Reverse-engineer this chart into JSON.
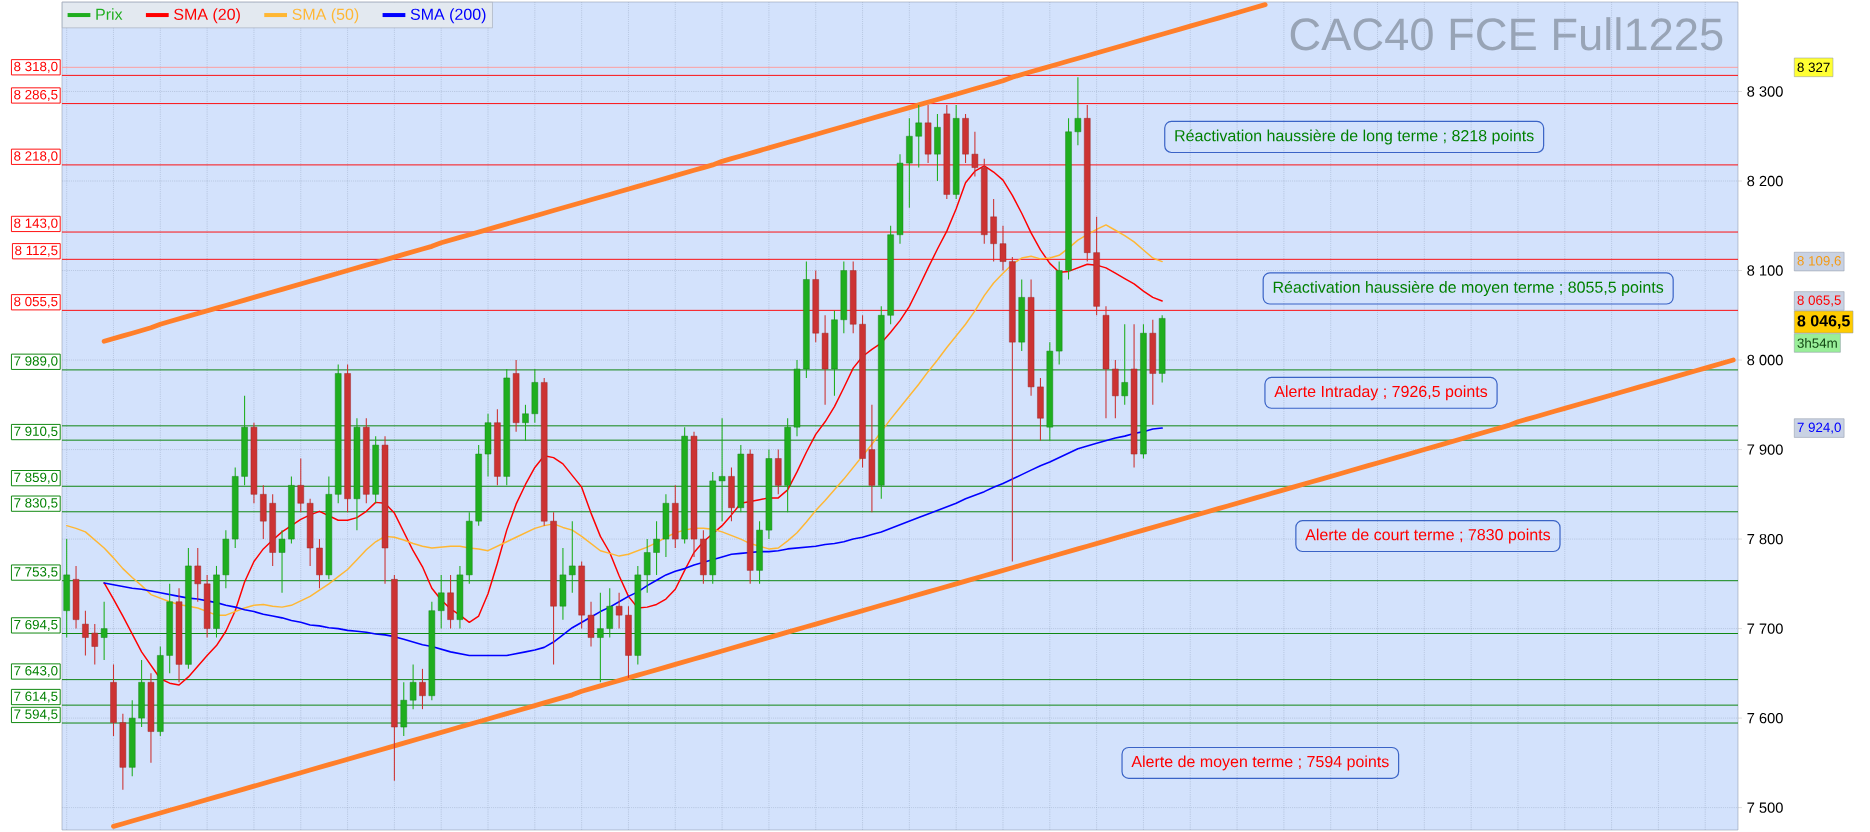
{
  "chart_data": {
    "type": "candlestick",
    "title": "CAC40 FCE Full1225",
    "categories": [
      null,
      null,
      null,
      null,
      null,
      null,
      null,
      null,
      null,
      null,
      null,
      null,
      null,
      null,
      null,
      null,
      null,
      null,
      null,
      null,
      null,
      null,
      null,
      null,
      null,
      null,
      null,
      null,
      null,
      null,
      null,
      null,
      null,
      null,
      null,
      null,
      null,
      null,
      null,
      null,
      null,
      null,
      null,
      null,
      null,
      null,
      null,
      null,
      null,
      null,
      null,
      null,
      null,
      null,
      null,
      null,
      null,
      null,
      null,
      null,
      null,
      null,
      null,
      null,
      null,
      null,
      null,
      null,
      null,
      null,
      null,
      null,
      null,
      null,
      null,
      null,
      null,
      null,
      null,
      null,
      null,
      null,
      null,
      null,
      null,
      null,
      null,
      null,
      null,
      null,
      null,
      null,
      null,
      null,
      null,
      null,
      null,
      null,
      null,
      null,
      null,
      null,
      null,
      null,
      null,
      null,
      null,
      null,
      null,
      null,
      null,
      null,
      null,
      null,
      null,
      null,
      null,
      null,
      null,
      null,
      null,
      null,
      null,
      null,
      null,
      null,
      null,
      null,
      null,
      null,
      null,
      null,
      null,
      null,
      null,
      null,
      null,
      null,
      null,
      null,
      null,
      null,
      null,
      null,
      null,
      null,
      null,
      null,
      null,
      null,
      null,
      null,
      null,
      null,
      null,
      null,
      null,
      null,
      null,
      null,
      null,
      null,
      null,
      null,
      null,
      null,
      null,
      null,
      null,
      null,
      null,
      null,
      null,
      null,
      null,
      null,
      null,
      null,
      null
    ],
    "series": [
      {
        "name": "Prix",
        "ohlc": [
          [
            7720,
            7800,
            7690,
            7760
          ],
          [
            7755,
            7770,
            7700,
            7710
          ],
          [
            7705,
            7720,
            7670,
            7690
          ],
          [
            7695,
            7705,
            7660,
            7680
          ],
          [
            7690,
            7730,
            7665,
            7700
          ],
          [
            7640,
            7660,
            7580,
            7595
          ],
          [
            7595,
            7605,
            7520,
            7545
          ],
          [
            7545,
            7620,
            7535,
            7600
          ],
          [
            7600,
            7665,
            7590,
            7640
          ],
          [
            7640,
            7650,
            7550,
            7585
          ],
          [
            7585,
            7680,
            7580,
            7670
          ],
          [
            7670,
            7750,
            7650,
            7730
          ],
          [
            7730,
            7745,
            7640,
            7660
          ],
          [
            7660,
            7790,
            7655,
            7770
          ],
          [
            7770,
            7790,
            7730,
            7750
          ],
          [
            7750,
            7760,
            7690,
            7700
          ],
          [
            7700,
            7770,
            7690,
            7760
          ],
          [
            7760,
            7810,
            7745,
            7800
          ],
          [
            7800,
            7880,
            7790,
            7870
          ],
          [
            7870,
            7960,
            7860,
            7925
          ],
          [
            7925,
            7930,
            7840,
            7850
          ],
          [
            7850,
            7860,
            7800,
            7820
          ],
          [
            7840,
            7850,
            7770,
            7785
          ],
          [
            7785,
            7810,
            7740,
            7800
          ],
          [
            7800,
            7870,
            7795,
            7860
          ],
          [
            7860,
            7890,
            7830,
            7840
          ],
          [
            7840,
            7845,
            7770,
            7790
          ],
          [
            7790,
            7800,
            7745,
            7760
          ],
          [
            7760,
            7870,
            7755,
            7850
          ],
          [
            7850,
            7995,
            7840,
            7985
          ],
          [
            7985,
            7995,
            7830,
            7845
          ],
          [
            7845,
            7935,
            7810,
            7925
          ],
          [
            7925,
            7935,
            7840,
            7850
          ],
          [
            7850,
            7915,
            7840,
            7905
          ],
          [
            7905,
            7915,
            7750,
            7790
          ],
          [
            7755,
            7760,
            7530,
            7590
          ],
          [
            7590,
            7640,
            7580,
            7620
          ],
          [
            7620,
            7660,
            7610,
            7640
          ],
          [
            7640,
            7655,
            7610,
            7625
          ],
          [
            7625,
            7730,
            7620,
            7720
          ],
          [
            7720,
            7760,
            7700,
            7740
          ],
          [
            7740,
            7760,
            7700,
            7710
          ],
          [
            7710,
            7770,
            7700,
            7760
          ],
          [
            7760,
            7830,
            7750,
            7820
          ],
          [
            7820,
            7905,
            7815,
            7895
          ],
          [
            7895,
            7940,
            7870,
            7930
          ],
          [
            7930,
            7945,
            7860,
            7870
          ],
          [
            7870,
            7990,
            7860,
            7980
          ],
          [
            7985,
            8000,
            7920,
            7930
          ],
          [
            7930,
            7950,
            7910,
            7940
          ],
          [
            7940,
            7990,
            7930,
            7975
          ],
          [
            7975,
            7980,
            7815,
            7820
          ],
          [
            7820,
            7830,
            7660,
            7725
          ],
          [
            7725,
            7790,
            7710,
            7760
          ],
          [
            7760,
            7820,
            7740,
            7770
          ],
          [
            7770,
            7775,
            7700,
            7715
          ],
          [
            7715,
            7730,
            7680,
            7690
          ],
          [
            7690,
            7740,
            7640,
            7700
          ],
          [
            7700,
            7745,
            7690,
            7725
          ],
          [
            7725,
            7740,
            7700,
            7715
          ],
          [
            7715,
            7725,
            7645,
            7670
          ],
          [
            7670,
            7770,
            7660,
            7760
          ],
          [
            7760,
            7800,
            7740,
            7785
          ],
          [
            7785,
            7820,
            7760,
            7800
          ],
          [
            7800,
            7850,
            7780,
            7840
          ],
          [
            7840,
            7860,
            7790,
            7800
          ],
          [
            7800,
            7925,
            7795,
            7915
          ],
          [
            7915,
            7920,
            7780,
            7800
          ],
          [
            7800,
            7810,
            7750,
            7760
          ],
          [
            7760,
            7875,
            7750,
            7865
          ],
          [
            7865,
            7935,
            7820,
            7870
          ],
          [
            7870,
            7880,
            7820,
            7835
          ],
          [
            7835,
            7905,
            7830,
            7895
          ],
          [
            7895,
            7900,
            7750,
            7765
          ],
          [
            7765,
            7820,
            7750,
            7810
          ],
          [
            7810,
            7900,
            7800,
            7890
          ],
          [
            7890,
            7900,
            7850,
            7860
          ],
          [
            7860,
            7935,
            7830,
            7925
          ],
          [
            7925,
            8000,
            7915,
            7990
          ],
          [
            7990,
            8110,
            7980,
            8090
          ],
          [
            8090,
            8100,
            8020,
            8030
          ],
          [
            8030,
            8050,
            7950,
            7990
          ],
          [
            7990,
            8055,
            7960,
            8045
          ],
          [
            8045,
            8110,
            8030,
            8100
          ],
          [
            8100,
            8110,
            8030,
            8040
          ],
          [
            8040,
            8050,
            7880,
            7890
          ],
          [
            7900,
            7950,
            7830,
            7860
          ],
          [
            7860,
            8060,
            7845,
            8050
          ],
          [
            8050,
            8150,
            8040,
            8140
          ],
          [
            8140,
            8230,
            8130,
            8220
          ],
          [
            8220,
            8270,
            8170,
            8250
          ],
          [
            8250,
            8285,
            8215,
            8265
          ],
          [
            8265,
            8285,
            8220,
            8230
          ],
          [
            8230,
            8275,
            8200,
            8260
          ],
          [
            8275,
            8285,
            8180,
            8185
          ],
          [
            8185,
            8285,
            8180,
            8270
          ],
          [
            8270,
            8275,
            8220,
            8230
          ],
          [
            8230,
            8255,
            8205,
            8215
          ],
          [
            8215,
            8225,
            8130,
            8140
          ],
          [
            8160,
            8180,
            8110,
            8130
          ],
          [
            8130,
            8150,
            8100,
            8110
          ],
          [
            8110,
            8115,
            7775,
            8020
          ],
          [
            8020,
            8090,
            8010,
            8070
          ],
          [
            8070,
            8090,
            7960,
            7970
          ],
          [
            7970,
            7980,
            7910,
            7935
          ],
          [
            7925,
            8020,
            7910,
            8010
          ],
          [
            8010,
            8110,
            7995,
            8100
          ],
          [
            8100,
            8270,
            8090,
            8255
          ],
          [
            8255,
            8316,
            8240,
            8270
          ],
          [
            8270,
            8285,
            8110,
            8120
          ],
          [
            8120,
            8160,
            8050,
            8060
          ],
          [
            8050,
            8060,
            7935,
            7990
          ],
          [
            7990,
            8000,
            7935,
            7960
          ],
          [
            7960,
            8040,
            7950,
            7975
          ],
          [
            7990,
            8040,
            7880,
            7895
          ],
          [
            7895,
            8040,
            7890,
            8030
          ],
          [
            8030,
            8045,
            7950,
            7985
          ],
          [
            7985,
            8050,
            7975,
            8046.5
          ],
          null,
          null,
          null,
          null,
          null,
          null,
          null,
          null,
          null,
          null,
          null,
          null,
          null,
          null,
          null,
          null,
          null,
          null,
          null,
          null,
          null,
          null,
          null,
          null,
          null,
          null,
          null,
          null,
          null,
          null,
          null,
          null,
          null,
          null,
          null,
          null,
          null,
          null,
          null,
          null,
          null,
          null,
          null,
          null,
          null,
          null,
          null,
          null,
          null,
          null,
          null,
          null,
          null,
          null,
          null,
          null,
          null,
          null,
          null,
          null,
          null
        ],
        "colors": [
          "#1fae1f",
          "#cc3333",
          "#cc3333",
          "#cc3333",
          "#1fae1f",
          "#cc3333",
          "#cc3333",
          "#1fae1f",
          "#1fae1f",
          "#cc3333",
          "#1fae1f",
          "#1fae1f",
          "#cc3333",
          "#1fae1f",
          "#cc3333",
          "#cc3333",
          "#1fae1f",
          "#1fae1f",
          "#1fae1f",
          "#1fae1f",
          "#cc3333",
          "#cc3333",
          "#cc3333",
          "#1fae1f",
          "#1fae1f",
          "#cc3333",
          "#cc3333",
          "#cc3333",
          "#1fae1f",
          "#1fae1f",
          "#cc3333",
          "#1fae1f",
          "#cc3333",
          "#1fae1f",
          "#cc3333",
          "#cc3333",
          "#1fae1f",
          "#1fae1f",
          "#cc3333",
          "#1fae1f",
          "#1fae1f",
          "#cc3333",
          "#1fae1f",
          "#1fae1f",
          "#1fae1f",
          "#1fae1f",
          "#cc3333",
          "#1fae1f",
          "#cc3333",
          "#1fae1f",
          "#1fae1f",
          "#cc3333",
          "#cc3333",
          "#1fae1f",
          "#1fae1f",
          "#cc3333",
          "#cc3333",
          "#1fae1f",
          "#1fae1f",
          "#cc3333",
          "#cc3333",
          "#1fae1f",
          "#1fae1f",
          "#1fae1f",
          "#1fae1f",
          "#cc3333",
          "#1fae1f",
          "#cc3333",
          "#cc3333",
          "#1fae1f",
          "#1fae1f",
          "#cc3333",
          "#1fae1f",
          "#cc3333",
          "#1fae1f",
          "#1fae1f",
          "#cc3333",
          "#1fae1f",
          "#1fae1f",
          "#1fae1f",
          "#cc3333",
          "#cc3333",
          "#1fae1f",
          "#1fae1f",
          "#cc3333",
          "#cc3333",
          "#cc3333",
          "#1fae1f",
          "#1fae1f",
          "#1fae1f",
          "#1fae1f",
          "#1fae1f",
          "#cc3333",
          "#1fae1f",
          "#cc3333",
          "#1fae1f",
          "#cc3333",
          "#cc3333",
          "#cc3333",
          "#cc3333",
          "#cc3333",
          "#cc3333",
          "#1fae1f",
          "#cc3333",
          "#cc3333",
          "#1fae1f",
          "#1fae1f",
          "#1fae1f",
          "#1fae1f",
          "#cc3333",
          "#cc3333",
          "#cc3333",
          "#cc3333",
          "#1fae1f",
          "#cc3333",
          "#1fae1f",
          "#cc3333",
          "#1fae1f",
          null,
          null,
          null,
          null,
          null,
          null,
          null,
          null,
          null,
          null,
          null,
          null,
          null,
          null,
          null,
          null,
          null,
          null,
          null,
          null,
          null,
          null,
          null,
          null,
          null,
          null,
          null,
          null,
          null,
          null,
          null,
          null,
          null,
          null,
          null,
          null,
          null,
          null,
          null,
          null,
          null,
          null,
          null,
          null,
          null,
          null,
          null,
          null,
          null,
          null,
          null,
          null,
          null,
          null,
          null,
          null,
          null,
          null,
          null,
          null,
          null
        ]
      },
      {
        "name": "SMA (20)",
        "type": "line",
        "color": "#ff0000",
        "values": [
          null,
          null,
          null,
          null,
          7751,
          7733,
          7714,
          7694,
          7674,
          7659,
          7644,
          7639,
          7637,
          7646,
          7658,
          7670,
          7681,
          7697,
          7720,
          7752,
          7775,
          7789,
          7799,
          7808,
          7815,
          7822,
          7827,
          7831,
          7826,
          7821,
          7821,
          7824,
          7831,
          7841,
          7840,
          7829,
          7808,
          7787,
          7769,
          7745,
          7732,
          7722,
          7715,
          7707,
          7714,
          7739,
          7773,
          7810,
          7839,
          7861,
          7880,
          7893,
          7891,
          7884,
          7871,
          7858,
          7829,
          7803,
          7785,
          7759,
          7736,
          7723,
          7724,
          7727,
          7733,
          7744,
          7765,
          7785,
          7797,
          7806,
          7815,
          7827,
          7840,
          7842,
          7844,
          7846,
          7846,
          7855,
          7875,
          7897,
          7917,
          7931,
          7948,
          7969,
          7991,
          8004,
          8012,
          8019,
          8031,
          8044,
          8060,
          8081,
          8103,
          8124,
          8144,
          8169,
          8198,
          8211,
          8217,
          8210,
          8201,
          8184,
          8164,
          8142,
          8123,
          8108,
          8098,
          8099,
          8103,
          8107,
          8106,
          8103,
          8097,
          8091,
          8085,
          8077,
          8070,
          8066,
          null,
          null,
          null,
          null,
          null,
          null,
          null,
          null,
          null,
          null,
          null,
          null,
          null,
          null,
          null,
          null,
          null,
          null,
          null,
          null,
          null,
          null,
          null,
          null,
          null,
          null,
          null,
          null,
          null,
          null,
          null,
          null,
          null,
          null,
          null,
          null,
          null,
          null,
          null,
          null,
          null,
          null,
          null,
          null,
          null,
          null,
          null,
          null,
          null,
          null,
          null,
          null,
          null,
          null,
          null,
          null,
          null,
          null,
          null,
          null,
          null
        ]
      },
      {
        "name": "SMA (50)",
        "type": "line",
        "color": "#ffb733",
        "values": [
          7815,
          7812,
          7808,
          7799,
          7790,
          7779,
          7767,
          7757,
          7748,
          7738,
          7734,
          7730,
          7727,
          7725,
          7723,
          7719,
          7715,
          7715,
          7719,
          7723,
          7726,
          7727,
          7725,
          7724,
          7726,
          7731,
          7736,
          7743,
          7750,
          7758,
          7766,
          7777,
          7788,
          7797,
          7803,
          7802,
          7799,
          7795,
          7792,
          7790,
          7791,
          7792,
          7792,
          7790,
          7789,
          7787,
          7792,
          7797,
          7802,
          7807,
          7812,
          7815,
          7817,
          7813,
          7810,
          7803,
          7795,
          7787,
          7784,
          7781,
          7783,
          7787,
          7791,
          7796,
          7802,
          7807,
          7810,
          7812,
          7812,
          7811,
          7808,
          7804,
          7800,
          7795,
          7792,
          7789,
          7790,
          7798,
          7807,
          7819,
          7832,
          7843,
          7855,
          7867,
          7880,
          7893,
          7906,
          null,
          7934,
          7947,
          7960,
          7973,
          7987,
          8000,
          8014,
          8027,
          8040,
          8055,
          8072,
          8086,
          8097,
          8107,
          8114,
          8116,
          8113,
          8114,
          8117,
          8125,
          8134,
          8140,
          8146,
          8151,
          8145,
          8139,
          8132,
          8123,
          8114,
          8110,
          null,
          null,
          null,
          null,
          null,
          null,
          null,
          null,
          null,
          null,
          null,
          null,
          null,
          null,
          null,
          null,
          null,
          null,
          null,
          null,
          null,
          null,
          null,
          null,
          null,
          null,
          null,
          null,
          null,
          null,
          null,
          null,
          null,
          null,
          null,
          null,
          null,
          null,
          null,
          null,
          null,
          null,
          null,
          null,
          null,
          null,
          null,
          null,
          null,
          null,
          null,
          null,
          null,
          null,
          null,
          null,
          null,
          null,
          null,
          null,
          null
        ]
      },
      {
        "name": "SMA (200)",
        "type": "line",
        "color": "#0000ff",
        "values": [
          null,
          null,
          null,
          null,
          7751,
          7749,
          7747,
          7745,
          7744,
          7742,
          7740,
          7738,
          7736,
          7734,
          7733,
          7731,
          7729,
          7726,
          7724,
          7721,
          7719,
          7716,
          7714,
          7712,
          7709,
          7707,
          7704,
          7703,
          7701,
          7700,
          7698,
          7697,
          7696,
          7694,
          7693,
          7691,
          7688,
          7685,
          7682,
          7680,
          7677,
          7674,
          7672,
          7670,
          7670,
          7670,
          7670,
          7670,
          7672,
          7674,
          7676,
          7679,
          7685,
          7693,
          7701,
          7707,
          7713,
          7719,
          7724,
          7730,
          7736,
          7741,
          7748,
          7754,
          7760,
          7764,
          7767,
          7771,
          7774,
          7777,
          7780,
          7783,
          7784,
          7785,
          7786,
          7786,
          7787,
          7789,
          7790,
          7791,
          7792,
          7794,
          7795,
          7797,
          7800,
          7802,
          7805,
          7808,
          7812,
          7816,
          7820,
          7824,
          7828,
          7832,
          7836,
          7840,
          7845,
          7849,
          7853,
          7858,
          7862,
          7867,
          7872,
          7877,
          7882,
          7886,
          7891,
          7896,
          7901,
          7904,
          7907,
          7910,
          7913,
          7915,
          7918,
          7920,
          7923,
          7924,
          null,
          null,
          null,
          null,
          null,
          null,
          null,
          null,
          null,
          null,
          null,
          null,
          null,
          null,
          null,
          null,
          null,
          null,
          null,
          null,
          null,
          null,
          null,
          null,
          null,
          null,
          null,
          null,
          null,
          null,
          null,
          null,
          null,
          null,
          null,
          null,
          null,
          null,
          null,
          null,
          null,
          null,
          null,
          null,
          null,
          null,
          null,
          null,
          null,
          null,
          null,
          null,
          null,
          null,
          null,
          null,
          null,
          null,
          null,
          null,
          null
        ]
      },
      {
        "type": "line",
        "color": "#ff7f2a",
        "values": [
          null,
          null,
          null,
          null,
          8021,
          8024,
          8027,
          8030,
          8033,
          8036,
          8040,
          8043,
          8046,
          8049,
          8052,
          8055,
          8058,
          8061,
          8064,
          8067,
          8070,
          8073,
          8076,
          8079,
          8082,
          8085,
          8088,
          8091,
          8094,
          8097,
          8100,
          8103,
          8106,
          8109,
          8112,
          8115,
          8118,
          8121,
          8124,
          8127,
          8131,
          8134,
          8137,
          8140,
          8143,
          8146,
          8149,
          8152,
          8155,
          8158,
          8161,
          8164,
          8167,
          8170,
          8173,
          8176,
          8179,
          8182,
          8185,
          8188,
          8191,
          8194,
          8197,
          8200,
          8203,
          8206,
          8209,
          8212,
          8215,
          8218,
          8222,
          8225,
          8228,
          8231,
          8234,
          8237,
          8240,
          8243,
          8246,
          8249,
          8252,
          8255,
          8258,
          8261,
          8264,
          8267,
          8270,
          8273,
          8276,
          8279,
          8282,
          8285,
          8288,
          8291,
          8294,
          8297,
          8300,
          8303,
          8306,
          8309,
          8312,
          8316,
          8319,
          8322,
          8325,
          8328,
          8331,
          8334,
          8337,
          8340,
          8343,
          8346,
          8349,
          8352,
          8355,
          8358,
          8361,
          8364,
          8367,
          8370,
          8373,
          8376,
          8379,
          8382,
          8385,
          8388,
          8391,
          8394,
          8397,
          null,
          null,
          null,
          null,
          null,
          null,
          null,
          null,
          null,
          null,
          null,
          null,
          null,
          null,
          null,
          null,
          null,
          null,
          null,
          null,
          null,
          null,
          null,
          null,
          null,
          null,
          null,
          null,
          null,
          null,
          null,
          null,
          null,
          null,
          null,
          null,
          null,
          null,
          null,
          null,
          null,
          null,
          null,
          null,
          null,
          null,
          null,
          null,
          null,
          null
        ]
      },
      {
        "type": "line",
        "color": "#ff7f2a",
        "values": [
          null,
          null,
          null,
          null,
          null,
          7479,
          7482,
          7485,
          7488,
          7491,
          7494,
          7497,
          7500,
          7503,
          7506,
          7509,
          7512,
          7515,
          7518,
          7521,
          7524,
          7527,
          7530,
          7533,
          7536,
          7539,
          7542,
          7545,
          7548,
          7551,
          7554,
          7557,
          7560,
          7563,
          7566,
          7569,
          7572,
          7575,
          7578,
          7581,
          7584,
          7587,
          7590,
          7593,
          7596,
          7599,
          7602,
          7605,
          7608,
          7611,
          7614,
          7617,
          7620,
          7623,
          7626,
          7630,
          7633,
          7636,
          7639,
          7642,
          7645,
          7648,
          7651,
          7654,
          7657,
          7660,
          7663,
          7666,
          7669,
          7672,
          7675,
          7678,
          7681,
          7684,
          7687,
          7690,
          7693,
          7696,
          7699,
          7702,
          7705,
          7708,
          7711,
          7714,
          7717,
          7720,
          7723,
          7726,
          7729,
          7732,
          7735,
          7738,
          7741,
          7744,
          7747,
          7750,
          7753,
          7756,
          7759,
          7762,
          7765,
          7768,
          7771,
          7774,
          7777,
          7780,
          7783,
          7786,
          7789,
          7792,
          7795,
          7798,
          7801,
          7804,
          7807,
          7810,
          7813,
          7816,
          7819,
          7822,
          7825,
          7828,
          7831,
          7834,
          7837,
          7840,
          7843,
          7846,
          7849,
          7852,
          7855,
          7858,
          7861,
          7864,
          7867,
          7870,
          7873,
          7876,
          7879,
          7882,
          7885,
          7888,
          7891,
          7894,
          7897,
          7900,
          7903,
          7906,
          7909,
          7912,
          7915,
          7918,
          7921,
          7924,
          7927,
          7931,
          7934,
          7937,
          7940,
          7943,
          7946,
          7949,
          7952,
          7955,
          7958,
          7961,
          7964,
          7967,
          7970,
          7973,
          7976,
          7979,
          7982,
          7985,
          7988,
          7991,
          7994,
          7997,
          8000
        ]
      }
    ],
    "ylim": [
      7475,
      8400
    ],
    "yticks": [
      {
        "value": 7500,
        "label": "7 500"
      },
      {
        "value": 7600,
        "label": "7 600"
      },
      {
        "value": 7700,
        "label": "7 700"
      },
      {
        "value": 7800,
        "label": "7 800"
      },
      {
        "value": 7900,
        "label": "7 900"
      },
      {
        "value": 8000,
        "label": "8 000"
      },
      {
        "value": 8100,
        "label": "8 100"
      },
      {
        "value": 8200,
        "label": "8 200"
      },
      {
        "value": 8300,
        "label": "8 300"
      }
    ],
    "ref_lines": [
      {
        "axis": "y",
        "value": 8327,
        "color": "#ff9999"
      },
      {
        "axis": "y",
        "value": 8318.0,
        "label": "8 318,0",
        "color": "#ff0000"
      },
      {
        "axis": "y",
        "value": 8286.5,
        "label": "8 286,5",
        "color": "#ff0000"
      },
      {
        "axis": "y",
        "value": 8218.0,
        "label": "8 218,0",
        "color": "#ff0000"
      },
      {
        "axis": "y",
        "value": 8143.0,
        "label": "8 143,0",
        "color": "#ff0000"
      },
      {
        "axis": "y",
        "value": 8112.5,
        "label": "8 112,5",
        "color": "#ff0000"
      },
      {
        "axis": "y",
        "value": 8055.5,
        "label": "8 055,5",
        "color": "#ff0000"
      },
      {
        "axis": "y",
        "value": 7989.0,
        "label": "7 989,0",
        "color": "#008000"
      },
      {
        "axis": "y",
        "value": 7926.5,
        "color": "#008000"
      },
      {
        "axis": "y",
        "value": 7910.5,
        "label": "7 910,5",
        "color": "#008000"
      },
      {
        "axis": "y",
        "value": 7859.0,
        "label": "7 859,0",
        "color": "#008000"
      },
      {
        "axis": "y",
        "value": 7830.5,
        "label": "7 830,5",
        "color": "#008000"
      },
      {
        "axis": "y",
        "value": 7753.5,
        "label": "7 753,5",
        "color": "#008000"
      },
      {
        "axis": "y",
        "value": 7694.5,
        "label": "7 694,5",
        "color": "#008000"
      },
      {
        "axis": "y",
        "value": 7643.0,
        "label": "7 643,0",
        "color": "#008000"
      },
      {
        "axis": "y",
        "value": 7614.5,
        "label": "7 614,5",
        "color": "#008000"
      },
      {
        "axis": "y",
        "value": 7594.5,
        "label": "7 594,5",
        "color": "#008000"
      }
    ],
    "annotations": [
      "Réactivation haussière de long terme ; 8218 points",
      "Réactivation haussière de moyen terme ; 8055,5 points",
      "Alerte Intraday ; 7926,5 points",
      "Alerte de court terme ; 7830 points",
      "Alerte de moyen terme ; 7594 points",
      "8 327",
      "8 109,6",
      "8 065,5",
      "8 046,5",
      "3h54m",
      "7 924,0"
    ],
    "grid": true,
    "legend": "top left",
    "tick_labels": "y"
  }
}
